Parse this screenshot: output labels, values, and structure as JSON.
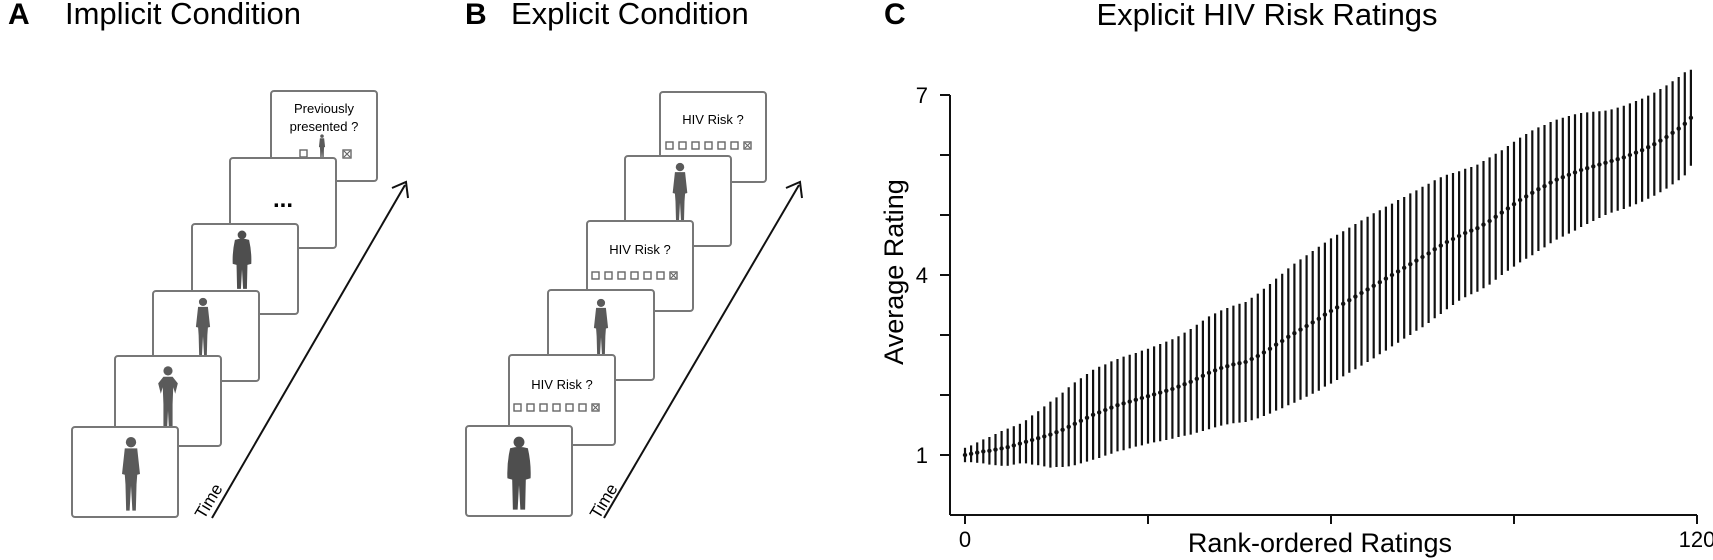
{
  "panel_a": {
    "letter": "A",
    "title": "Implicit Condition",
    "query_line1": "Previously",
    "query_line2": "presented ?",
    "ellipsis": "...",
    "time_label": "Time"
  },
  "panel_b": {
    "letter": "B",
    "title": "Explicit Condition",
    "query": "HIV Risk ?",
    "time_label": "Time"
  },
  "panel_c": {
    "letter": "C"
  },
  "chart_data": {
    "type": "scatter",
    "title": "Explicit HIV Risk Ratings",
    "xlabel": "Rank-ordered Ratings",
    "ylabel": "Average Rating",
    "xlim": [
      0,
      120
    ],
    "ylim": [
      0,
      7
    ],
    "xtick_labels": [
      "0",
      "120"
    ],
    "ytick_labels": [
      "1",
      "4",
      "7"
    ],
    "ytick_values": [
      1,
      4,
      7
    ],
    "error_bars": "vertical, approx. ±1 SD",
    "n_points": 120,
    "x": [
      1,
      2,
      3,
      4,
      5,
      6,
      7,
      8,
      9,
      10,
      11,
      12,
      13,
      14,
      15,
      16,
      17,
      18,
      19,
      20,
      21,
      22,
      23,
      24,
      25,
      26,
      27,
      28,
      29,
      30,
      31,
      32,
      33,
      34,
      35,
      36,
      37,
      38,
      39,
      40,
      41,
      42,
      43,
      44,
      45,
      46,
      47,
      48,
      49,
      50,
      51,
      52,
      53,
      54,
      55,
      56,
      57,
      58,
      59,
      60,
      61,
      62,
      63,
      64,
      65,
      66,
      67,
      68,
      69,
      70,
      71,
      72,
      73,
      74,
      75,
      76,
      77,
      78,
      79,
      80,
      81,
      82,
      83,
      84,
      85,
      86,
      87,
      88,
      89,
      90,
      91,
      92,
      93,
      94,
      95,
      96,
      97,
      98,
      99,
      100,
      101,
      102,
      103,
      104,
      105,
      106,
      107,
      108,
      109,
      110,
      111,
      112,
      113,
      114,
      115,
      116,
      117,
      118,
      119,
      120
    ],
    "means": [
      1.0,
      1.02,
      1.04,
      1.06,
      1.07,
      1.09,
      1.11,
      1.13,
      1.16,
      1.19,
      1.22,
      1.25,
      1.28,
      1.31,
      1.34,
      1.38,
      1.42,
      1.47,
      1.52,
      1.57,
      1.62,
      1.67,
      1.71,
      1.75,
      1.79,
      1.83,
      1.86,
      1.89,
      1.92,
      1.95,
      1.98,
      2.01,
      2.04,
      2.07,
      2.1,
      2.14,
      2.18,
      2.22,
      2.27,
      2.32,
      2.37,
      2.41,
      2.45,
      2.48,
      2.51,
      2.53,
      2.55,
      2.6,
      2.65,
      2.71,
      2.77,
      2.84,
      2.9,
      2.97,
      3.03,
      3.09,
      3.15,
      3.21,
      3.27,
      3.34,
      3.4,
      3.46,
      3.52,
      3.58,
      3.64,
      3.7,
      3.76,
      3.82,
      3.88,
      3.94,
      4.0,
      4.06,
      4.12,
      4.18,
      4.24,
      4.3,
      4.36,
      4.43,
      4.49,
      4.55,
      4.6,
      4.65,
      4.7,
      4.74,
      4.78,
      4.84,
      4.9,
      4.97,
      5.04,
      5.11,
      5.18,
      5.25,
      5.31,
      5.37,
      5.43,
      5.48,
      5.54,
      5.59,
      5.63,
      5.67,
      5.71,
      5.75,
      5.78,
      5.81,
      5.84,
      5.87,
      5.9,
      5.93,
      5.96,
      6.0,
      6.04,
      6.08,
      6.13,
      6.18,
      6.24,
      6.3,
      6.37,
      6.44,
      6.52,
      6.62
    ],
    "errors": [
      0.12,
      0.14,
      0.17,
      0.2,
      0.23,
      0.26,
      0.29,
      0.31,
      0.32,
      0.33,
      0.36,
      0.41,
      0.45,
      0.5,
      0.55,
      0.58,
      0.62,
      0.66,
      0.69,
      0.71,
      0.73,
      0.75,
      0.76,
      0.76,
      0.77,
      0.77,
      0.78,
      0.78,
      0.78,
      0.79,
      0.79,
      0.8,
      0.81,
      0.82,
      0.83,
      0.84,
      0.86,
      0.88,
      0.9,
      0.92,
      0.94,
      0.95,
      0.96,
      0.97,
      0.98,
      0.99,
      1.0,
      1.02,
      1.04,
      1.06,
      1.08,
      1.1,
      1.12,
      1.14,
      1.16,
      1.17,
      1.18,
      1.19,
      1.2,
      1.2,
      1.21,
      1.21,
      1.21,
      1.21,
      1.21,
      1.21,
      1.21,
      1.21,
      1.2,
      1.2,
      1.19,
      1.19,
      1.18,
      1.18,
      1.17,
      1.17,
      1.16,
      1.15,
      1.14,
      1.12,
      1.1,
      1.08,
      1.07,
      1.06,
      1.06,
      1.06,
      1.06,
      1.05,
      1.04,
      1.04,
      1.04,
      1.04,
      1.04,
      1.04,
      1.03,
      1.02,
      1.01,
      1.0,
      0.99,
      0.98,
      0.97,
      0.95,
      0.93,
      0.91,
      0.89,
      0.87,
      0.86,
      0.86,
      0.86,
      0.86,
      0.86,
      0.86,
      0.86,
      0.86,
      0.86,
      0.86,
      0.86,
      0.86,
      0.86,
      0.8
    ]
  }
}
